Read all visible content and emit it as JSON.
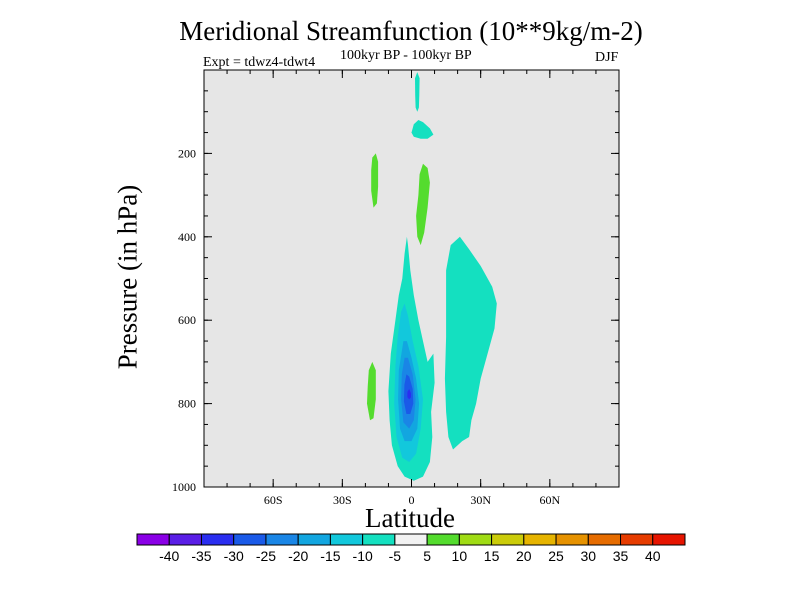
{
  "chart_data": {
    "type": "contour",
    "title": "Meridional Streamfunction (10**9kg/m-2)",
    "subtitle": "100kyr BP - 100kyr BP",
    "experiment": "Expt = tdwz4-tdwt4",
    "season": "DJF",
    "xlabel": "Latitude",
    "ylabel": "Pressure (in hPa)",
    "xlim": [
      -90,
      90
    ],
    "ylim": [
      1000,
      0
    ],
    "y_reversed": true,
    "background_color": "#e6e6e6",
    "x_ticks": [
      {
        "value": -60,
        "label": "60S"
      },
      {
        "value": -30,
        "label": "30S"
      },
      {
        "value": 0,
        "label": "0"
      },
      {
        "value": 30,
        "label": "30N"
      },
      {
        "value": 60,
        "label": "60N"
      }
    ],
    "y_ticks": [
      {
        "value": 200,
        "label": "200"
      },
      {
        "value": 400,
        "label": "400"
      },
      {
        "value": 600,
        "label": "600"
      },
      {
        "value": 800,
        "label": "800"
      },
      {
        "value": 1000,
        "label": "1000"
      }
    ],
    "colorbar": {
      "levels": [
        -40,
        -35,
        -30,
        -25,
        -20,
        -15,
        -10,
        -5,
        5,
        10,
        15,
        20,
        25,
        30,
        35,
        40
      ],
      "labels": [
        "-40",
        "-35",
        "-30",
        "-25",
        "-20",
        "-15",
        "-10",
        "-5",
        "5",
        "10",
        "15",
        "20",
        "25",
        "30",
        "35",
        "40"
      ],
      "colors": [
        "#8a00e6",
        "#5a1ee6",
        "#2a2ef0",
        "#1a5ae8",
        "#1a86e6",
        "#12a6e0",
        "#12c8dc",
        "#14e0c0",
        "#f2f2f2",
        "#54dc2e",
        "#a0dc14",
        "#cbcc0a",
        "#e6b400",
        "#e69200",
        "#e66c00",
        "#e63c00",
        "#e61400"
      ]
    },
    "regions": [
      {
        "name": "strat-plume",
        "level_range": [
          -10,
          -5
        ],
        "color": "#14e0c0",
        "points": [
          [
            1.5,
            20
          ],
          [
            2.5,
            5
          ],
          [
            3.5,
            20
          ],
          [
            3.4,
            60
          ],
          [
            3.2,
            90
          ],
          [
            2.5,
            100
          ],
          [
            1.8,
            90
          ],
          [
            1.6,
            60
          ]
        ]
      },
      {
        "name": "upper-blob",
        "level_range": [
          -10,
          -5
        ],
        "color": "#14e0c0",
        "points": [
          [
            0,
            150
          ],
          [
            1,
            130
          ],
          [
            3,
            120
          ],
          [
            5,
            125
          ],
          [
            8,
            140
          ],
          [
            9.5,
            155
          ],
          [
            7,
            165
          ],
          [
            4,
            165
          ],
          [
            1,
            160
          ]
        ]
      },
      {
        "name": "sh-upper-cell",
        "level_range": [
          5,
          10
        ],
        "color": "#54dc2e",
        "points": [
          [
            -17.5,
            240
          ],
          [
            -17,
            210
          ],
          [
            -15.5,
            200
          ],
          [
            -14.5,
            220
          ],
          [
            -14.5,
            280
          ],
          [
            -15,
            320
          ],
          [
            -16.5,
            330
          ],
          [
            -17.5,
            290
          ]
        ]
      },
      {
        "name": "eq-upper-cell",
        "level_range": [
          5,
          10
        ],
        "color": "#54dc2e",
        "points": [
          [
            3,
            300
          ],
          [
            3.5,
            250
          ],
          [
            5,
            225
          ],
          [
            7,
            235
          ],
          [
            8,
            270
          ],
          [
            7,
            330
          ],
          [
            5.5,
            390
          ],
          [
            4,
            420
          ],
          [
            2.5,
            400
          ],
          [
            2,
            350
          ]
        ]
      },
      {
        "name": "sh-lower-cell",
        "level_range": [
          5,
          10
        ],
        "color": "#54dc2e",
        "points": [
          [
            -19,
            760
          ],
          [
            -18.5,
            720
          ],
          [
            -17,
            700
          ],
          [
            -15.5,
            720
          ],
          [
            -15.5,
            790
          ],
          [
            -16.5,
            835
          ],
          [
            -18,
            840
          ],
          [
            -19.3,
            800
          ]
        ]
      },
      {
        "name": "nh-cell",
        "level_range": [
          -10,
          -5
        ],
        "color": "#14e0c0",
        "points": [
          [
            15,
            480
          ],
          [
            17,
            420
          ],
          [
            21,
            400
          ],
          [
            25,
            430
          ],
          [
            30,
            470
          ],
          [
            35,
            520
          ],
          [
            37,
            560
          ],
          [
            36,
            620
          ],
          [
            33,
            680
          ],
          [
            30,
            740
          ],
          [
            28,
            800
          ],
          [
            26,
            840
          ],
          [
            25,
            880
          ],
          [
            22,
            890
          ],
          [
            18,
            910
          ],
          [
            16,
            880
          ],
          [
            15,
            820
          ],
          [
            14.5,
            740
          ],
          [
            15,
            640
          ],
          [
            15,
            560
          ]
        ]
      },
      {
        "name": "hadley-10",
        "level_range": [
          -10,
          -5
        ],
        "color": "#14e0c0",
        "points": [
          [
            -4,
            500
          ],
          [
            -3,
            440
          ],
          [
            -2,
            400
          ],
          [
            -1.5,
            420
          ],
          [
            -0.5,
            480
          ],
          [
            1,
            540
          ],
          [
            3,
            600
          ],
          [
            5,
            650
          ],
          [
            7,
            700
          ],
          [
            9.5,
            680
          ],
          [
            10,
            750
          ],
          [
            8.5,
            820
          ],
          [
            9,
            880
          ],
          [
            8,
            940
          ],
          [
            5,
            975
          ],
          [
            1,
            985
          ],
          [
            -3,
            975
          ],
          [
            -6,
            950
          ],
          [
            -8.5,
            900
          ],
          [
            -9.5,
            840
          ],
          [
            -10,
            770
          ],
          [
            -9,
            680
          ],
          [
            -7,
            600
          ],
          [
            -5.5,
            540
          ]
        ]
      },
      {
        "name": "hadley-15",
        "level_range": [
          -15,
          -10
        ],
        "color": "#12c8dc",
        "points": [
          [
            -4.5,
            580
          ],
          [
            -3,
            560
          ],
          [
            -1.5,
            590
          ],
          [
            0.5,
            650
          ],
          [
            3,
            710
          ],
          [
            5,
            790
          ],
          [
            4,
            860
          ],
          [
            2,
            920
          ],
          [
            -1,
            940
          ],
          [
            -4,
            930
          ],
          [
            -6.5,
            880
          ],
          [
            -7.5,
            800
          ],
          [
            -7,
            710
          ],
          [
            -6,
            640
          ]
        ]
      },
      {
        "name": "hadley-20",
        "level_range": [
          -20,
          -15
        ],
        "color": "#12a6e0",
        "points": [
          [
            -3.5,
            650
          ],
          [
            -2,
            650
          ],
          [
            0,
            690
          ],
          [
            2,
            740
          ],
          [
            3.3,
            800
          ],
          [
            2.5,
            860
          ],
          [
            0,
            890
          ],
          [
            -3,
            890
          ],
          [
            -5,
            860
          ],
          [
            -5.8,
            790
          ],
          [
            -5.5,
            720
          ]
        ]
      },
      {
        "name": "hadley-25",
        "level_range": [
          -25,
          -20
        ],
        "color": "#1a86e6",
        "points": [
          [
            -3,
            690
          ],
          [
            -1.5,
            690
          ],
          [
            0.5,
            730
          ],
          [
            1.8,
            790
          ],
          [
            1,
            840
          ],
          [
            -1,
            860
          ],
          [
            -3.5,
            845
          ],
          [
            -4.5,
            790
          ],
          [
            -4.2,
            730
          ]
        ]
      },
      {
        "name": "hadley-30",
        "level_range": [
          -30,
          -25
        ],
        "color": "#1a5ae8",
        "points": [
          [
            -2.2,
            730
          ],
          [
            -1,
            735
          ],
          [
            0.5,
            765
          ],
          [
            0.8,
            800
          ],
          [
            -0.5,
            825
          ],
          [
            -2.2,
            825
          ],
          [
            -3.3,
            795
          ],
          [
            -3.1,
            755
          ]
        ]
      },
      {
        "name": "hadley-35",
        "level_range": [
          -35,
          -30
        ],
        "color": "#2a2ef0",
        "points": [
          [
            -1,
            765
          ],
          [
            -0.2,
            775
          ],
          [
            -0.2,
            785
          ],
          [
            -1,
            790
          ],
          [
            -1.8,
            785
          ],
          [
            -1.8,
            772
          ]
        ]
      }
    ]
  }
}
